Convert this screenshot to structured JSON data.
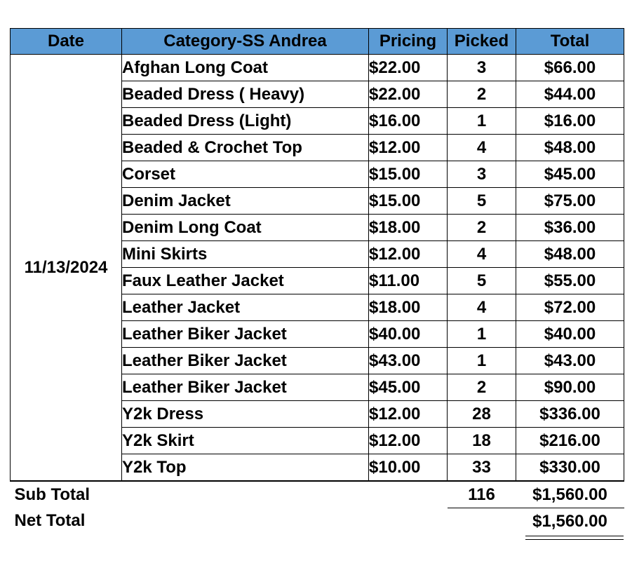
{
  "header": {
    "date": "Date",
    "category": "Category-SS Andrea",
    "pricing": "Pricing",
    "picked": "Picked",
    "total": "Total"
  },
  "date_value": "11/13/2024",
  "rows": [
    {
      "category": "Afghan Long Coat",
      "pricing": "$22.00",
      "picked": "3",
      "total": "$66.00"
    },
    {
      "category": "Beaded Dress ( Heavy)",
      "pricing": "$22.00",
      "picked": "2",
      "total": "$44.00"
    },
    {
      "category": "Beaded Dress (Light)",
      "pricing": "$16.00",
      "picked": "1",
      "total": "$16.00"
    },
    {
      "category": "Beaded & Crochet Top",
      "pricing": "$12.00",
      "picked": "4",
      "total": "$48.00"
    },
    {
      "category": "Corset",
      "pricing": "$15.00",
      "picked": "3",
      "total": "$45.00"
    },
    {
      "category": "Denim Jacket",
      "pricing": "$15.00",
      "picked": "5",
      "total": "$75.00"
    },
    {
      "category": "Denim Long Coat",
      "pricing": "$18.00",
      "picked": "2",
      "total": "$36.00"
    },
    {
      "category": "Mini Skirts",
      "pricing": "$12.00",
      "picked": "4",
      "total": "$48.00"
    },
    {
      "category": "Faux Leather Jacket",
      "pricing": "$11.00",
      "picked": "5",
      "total": "$55.00"
    },
    {
      "category": "Leather Jacket",
      "pricing": "$18.00",
      "picked": "4",
      "total": "$72.00"
    },
    {
      "category": "Leather Biker Jacket",
      "pricing": "$40.00",
      "picked": "1",
      "total": "$40.00"
    },
    {
      "category": "Leather Biker Jacket",
      "pricing": "$43.00",
      "picked": "1",
      "total": "$43.00"
    },
    {
      "category": "Leather Biker Jacket",
      "pricing": "$45.00",
      "picked": "2",
      "total": "$90.00"
    },
    {
      "category": "Y2k Dress",
      "pricing": "$12.00",
      "picked": "28",
      "total": "$336.00"
    },
    {
      "category": "Y2k Skirt",
      "pricing": "$12.00",
      "picked": "18",
      "total": "$216.00"
    },
    {
      "category": "Y2k Top",
      "pricing": "$10.00",
      "picked": "33",
      "total": "$330.00"
    }
  ],
  "subtotal": {
    "label": "Sub Total",
    "picked": "116",
    "total": "$1,560.00"
  },
  "nettotal": {
    "label": "Net Total",
    "total": "$1,560.00"
  },
  "colors": {
    "header_bg": "#5b9bd5"
  }
}
